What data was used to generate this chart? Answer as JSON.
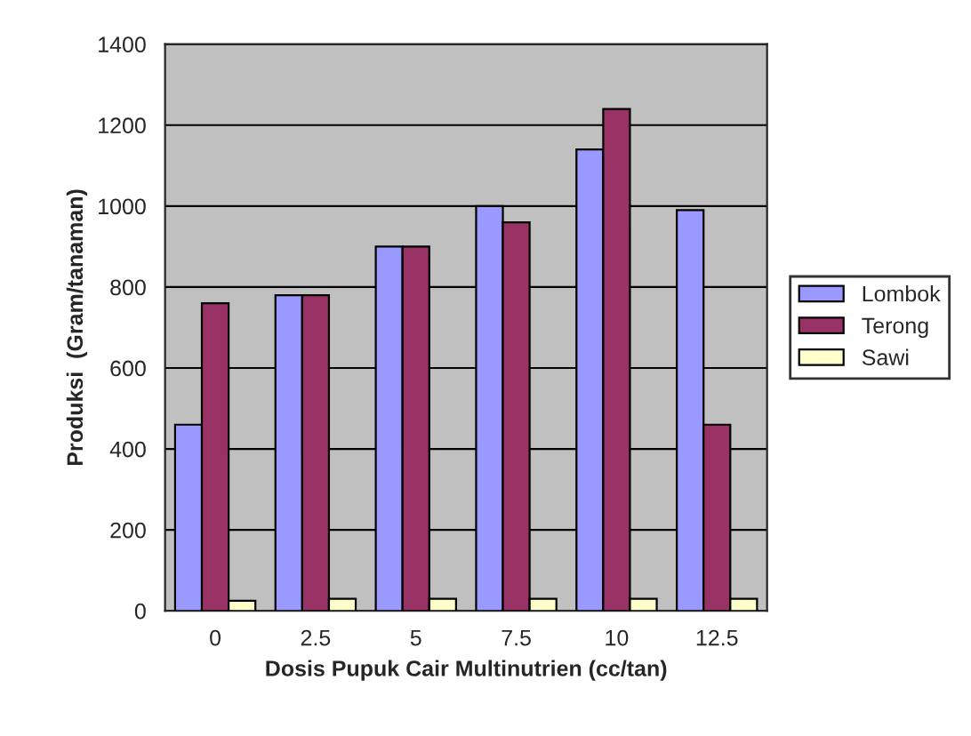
{
  "chart_data": {
    "type": "bar",
    "xlabel": "Dosis Pupuk Cair Multinutrien (cc/tan)",
    "ylabel": "Produksi  (Gram/tanaman)",
    "categories": [
      "0",
      "2.5",
      "5",
      "7.5",
      "10",
      "12.5"
    ],
    "series": [
      {
        "name": "Lombok",
        "color": "#9999ff",
        "values": [
          460,
          780,
          900,
          1000,
          1140,
          990
        ]
      },
      {
        "name": "Terong",
        "color": "#993366",
        "values": [
          760,
          780,
          900,
          960,
          1240,
          460
        ]
      },
      {
        "name": "Sawi",
        "color": "#ffffcc",
        "values": [
          25,
          30,
          30,
          30,
          30,
          30
        ]
      }
    ],
    "ylim": [
      0,
      1400
    ],
    "yticks": [
      0,
      200,
      400,
      600,
      800,
      1000,
      1200,
      1400
    ],
    "grid": "y",
    "legend": "right"
  }
}
